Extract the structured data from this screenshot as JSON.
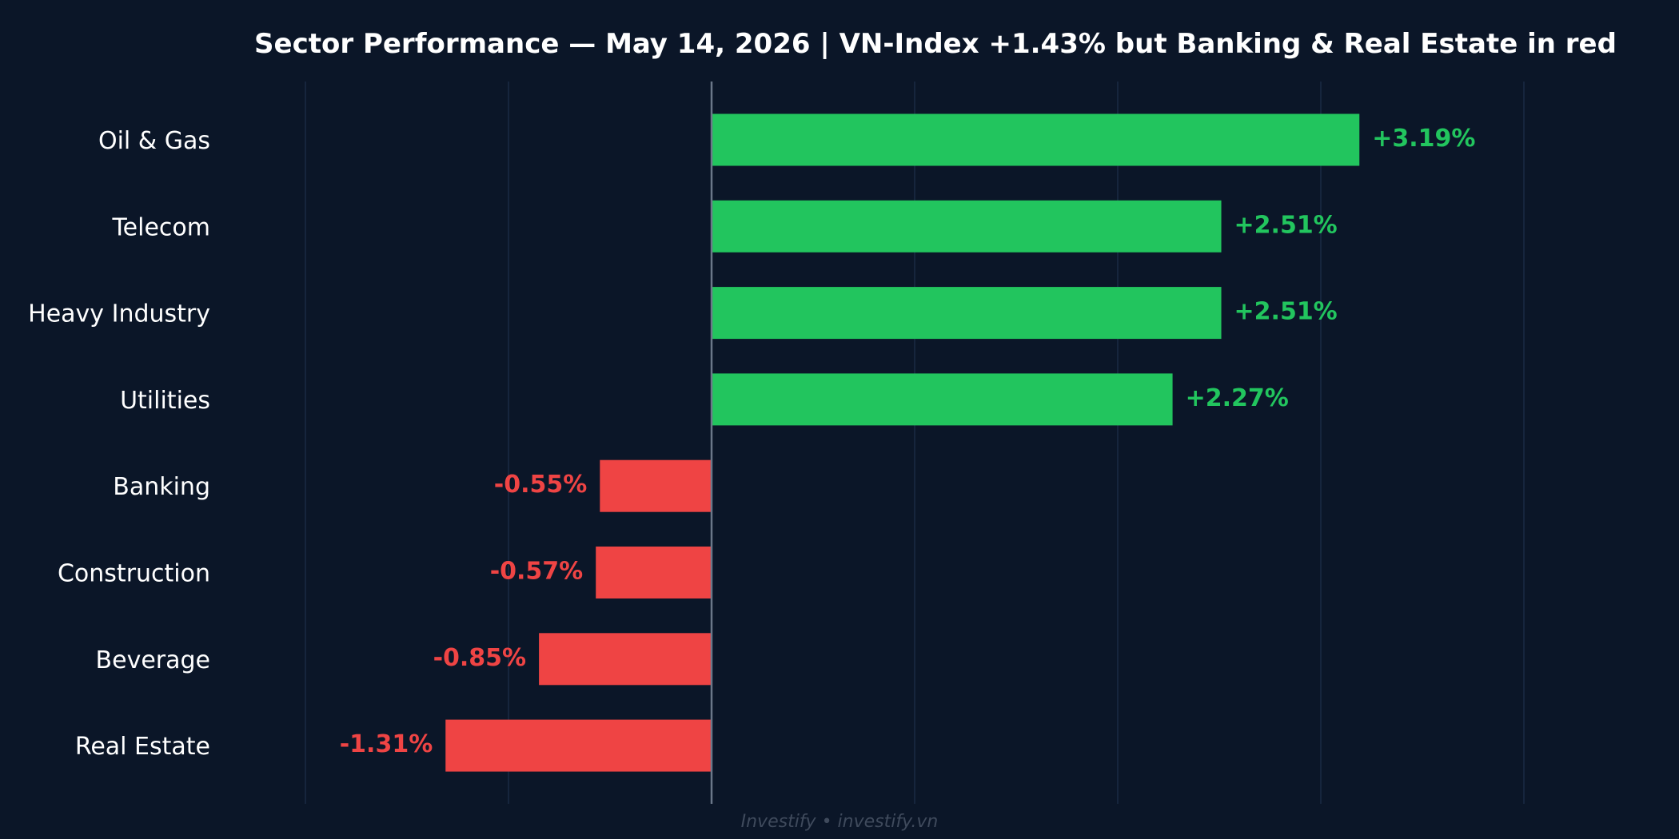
{
  "colors": {
    "background": "#0b1628",
    "positive": "#22c55e",
    "negative": "#ef4444",
    "grid": "#1b2a44",
    "zero_line": "#6b7789",
    "text": "#ffffff",
    "footer": "#3f4a5c"
  },
  "footer": {
    "text": "Investify  •  investify.vn"
  },
  "chart_data": {
    "type": "bar",
    "orientation": "horizontal",
    "title": "Sector Performance — May 14, 2026  |  VN-Index +1.43% but Banking & Real Estate in red",
    "categories": [
      "Oil & Gas",
      "Telecom",
      "Heavy Industry",
      "Utilities",
      "Banking",
      "Construction",
      "Beverage",
      "Real Estate"
    ],
    "values": [
      3.19,
      2.51,
      2.51,
      2.27,
      -0.55,
      -0.57,
      -0.85,
      -1.31
    ],
    "value_labels": [
      "+3.19%",
      "+2.51%",
      "+2.51%",
      "+2.27%",
      "-0.55%",
      "-0.57%",
      "-0.85%",
      "-1.31%"
    ],
    "xlim": [
      -2,
      4
    ],
    "gridlines": [
      -2,
      -1,
      0,
      1,
      2,
      3,
      4
    ],
    "grid": true,
    "legend": false
  }
}
